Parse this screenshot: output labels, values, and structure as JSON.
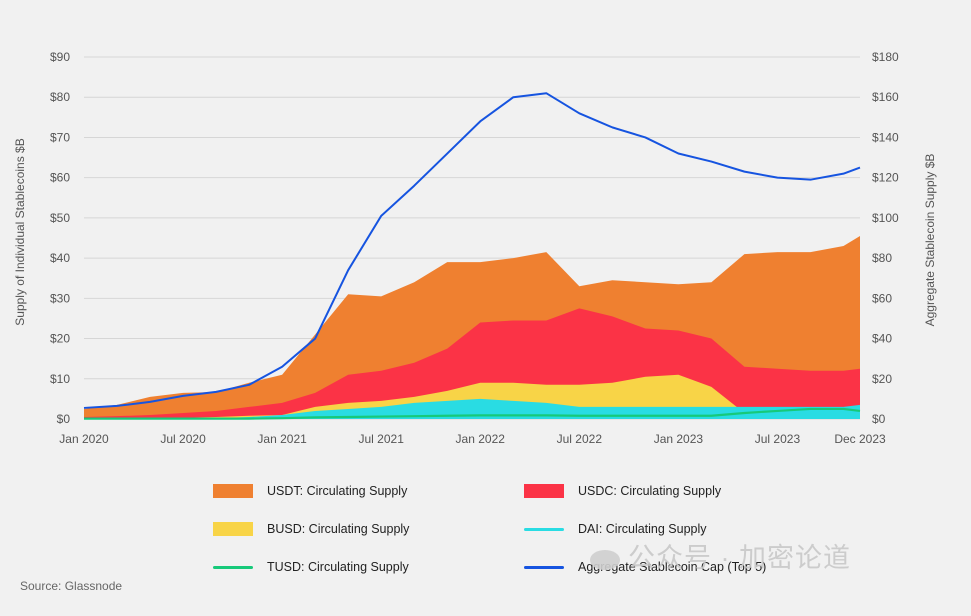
{
  "chart_data": {
    "type": "area",
    "title": "",
    "x_ticks": [
      "Jan 2020",
      "Jul 2020",
      "Jan 2021",
      "Jul 2021",
      "Jan 2022",
      "Jul 2022",
      "Jan 2023",
      "Jul 2023",
      "Dec 2023"
    ],
    "y_left": {
      "label": "Supply of Individual Stablecoins $B",
      "ticks": [
        "$0",
        "$10",
        "$20",
        "$30",
        "$40",
        "$50",
        "$60",
        "$70",
        "$80",
        "$90"
      ],
      "range": [
        0,
        90
      ]
    },
    "y_right": {
      "label": "Aggregate Stablecoin Supply $B",
      "ticks": [
        "$0",
        "$20",
        "$40",
        "$60",
        "$80",
        "$100",
        "$120",
        "$140",
        "$160",
        "$180"
      ],
      "range": [
        0,
        180
      ]
    },
    "x": [
      "2020-01",
      "2020-03",
      "2020-05",
      "2020-07",
      "2020-09",
      "2020-11",
      "2021-01",
      "2021-03",
      "2021-05",
      "2021-07",
      "2021-09",
      "2021-11",
      "2022-01",
      "2022-03",
      "2022-05",
      "2022-07",
      "2022-09",
      "2022-11",
      "2023-01",
      "2023-03",
      "2023-05",
      "2023-07",
      "2023-09",
      "2023-11",
      "2023-12"
    ],
    "series": [
      {
        "name": "USDT: Circulating Supply",
        "axis": "left",
        "kind": "area",
        "color": "#ef8030",
        "values": [
          2.5,
          3.5,
          5.5,
          6.5,
          6.7,
          9.0,
          11.0,
          21.0,
          31.0,
          30.5,
          34.0,
          39.0,
          39.0,
          40.0,
          41.5,
          33.0,
          34.5,
          34.0,
          33.5,
          34.0,
          41.0,
          41.5,
          41.5,
          43.0,
          45.5
        ]
      },
      {
        "name": "USDC: Circulating Supply",
        "axis": "left",
        "kind": "area",
        "color": "#fb3346",
        "values": [
          0.5,
          0.7,
          1.0,
          1.5,
          2.0,
          3.0,
          4.0,
          6.5,
          11.0,
          12.0,
          14.0,
          17.5,
          24.0,
          24.5,
          24.5,
          27.5,
          25.5,
          22.5,
          22.0,
          20.0,
          13.0,
          12.5,
          12.0,
          12.0,
          12.5
        ]
      },
      {
        "name": "BUSD: Circulating Supply",
        "axis": "left",
        "kind": "area",
        "color": "#f8d447",
        "values": [
          0.2,
          0.2,
          0.2,
          0.3,
          0.5,
          0.8,
          1.0,
          3.0,
          4.0,
          4.5,
          5.5,
          7.0,
          9.0,
          9.0,
          8.5,
          8.5,
          9.0,
          10.5,
          11.0,
          8.0,
          1.5,
          1.0,
          1.0,
          0.8,
          0.8
        ]
      },
      {
        "name": "DAI: Circulating Supply",
        "axis": "left",
        "kind": "area",
        "color": "#29dce3",
        "values": [
          0.1,
          0.1,
          0.1,
          0.1,
          0.2,
          0.5,
          1.0,
          2.0,
          2.5,
          3.0,
          4.0,
          4.5,
          5.0,
          4.5,
          4.0,
          3.0,
          3.0,
          3.0,
          3.0,
          3.0,
          3.0,
          3.0,
          3.0,
          3.0,
          3.5
        ]
      },
      {
        "name": "TUSD: Circulating Supply",
        "axis": "left",
        "kind": "line",
        "color": "#17c97a",
        "values": [
          0.1,
          0.1,
          0.1,
          0.1,
          0.1,
          0.1,
          0.2,
          0.4,
          0.5,
          0.6,
          0.7,
          0.8,
          0.9,
          0.9,
          0.9,
          0.8,
          0.8,
          0.8,
          0.8,
          0.8,
          1.5,
          2.0,
          2.5,
          2.5,
          2.0
        ]
      },
      {
        "name": "Aggregate Stablecoin Cap (Top 5)",
        "axis": "right",
        "kind": "line",
        "color": "#1654e0",
        "values": [
          5.5,
          6.5,
          8.5,
          11.5,
          13.5,
          17.0,
          26.0,
          40.0,
          74.0,
          101.0,
          116.0,
          132.0,
          148.0,
          160.0,
          162.0,
          152.0,
          145.0,
          140.0,
          132.0,
          128.0,
          123.0,
          120.0,
          119.0,
          122.0,
          125.0
        ]
      }
    ],
    "legend_position": "bottom",
    "grid": true
  },
  "legend": {
    "usdt": "USDT: Circulating Supply",
    "usdc": "USDC: Circulating Supply",
    "busd": "BUSD: Circulating Supply",
    "dai": "DAI: Circulating Supply",
    "tusd": "TUSD: Circulating Supply",
    "aggregate": "Aggregate Stablecoin Cap (Top 5)"
  },
  "source": "Source: Glassnode",
  "watermark": "公众号 · 加密论道"
}
